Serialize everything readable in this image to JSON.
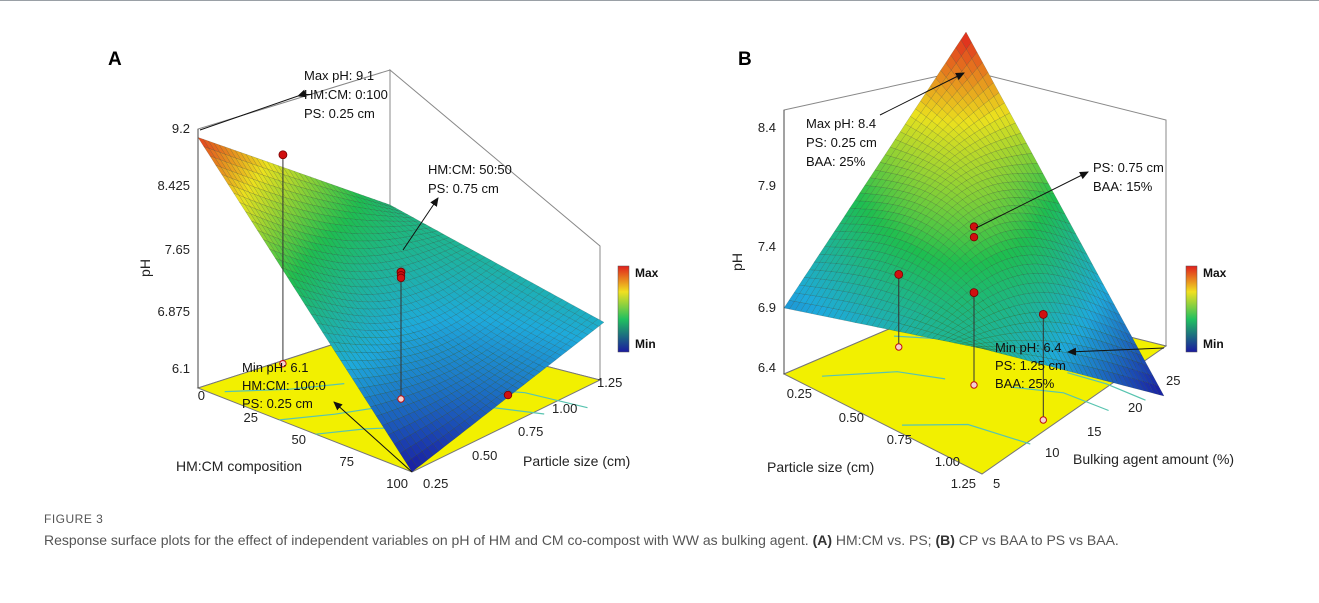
{
  "figure_label": "FIGURE 3",
  "caption": {
    "text_1": "Response surface plots for the effect of independent variables on pH of HM and CM co-compost with WW as bulking agent. ",
    "tag_a": "(A)",
    "text_2": " HM:CM vs. PS; ",
    "tag_b": "(B)",
    "text_3": " CP vs BAA to PS vs BAA."
  },
  "colors": {
    "surface_low": "#1a1aa0",
    "surface_high": "#e0201e",
    "floor": "#f2f000",
    "contour": "#58c4b0",
    "marker": "#d01010"
  },
  "chart_data": [
    {
      "type": "surface3d",
      "panel_label": "A",
      "title": "",
      "z_label": "pH",
      "x_label": "HM:CM composition",
      "y_label": "Particle size (cm)",
      "z_ticks": [
        "9.2",
        "8.425",
        "7.65",
        "6.875",
        "6.1"
      ],
      "z_range": [
        6.1,
        9.2
      ],
      "x_ticks": [
        "0",
        "25",
        "50",
        "75",
        "100"
      ],
      "x_range": [
        0,
        100
      ],
      "y_ticks": [
        "0.25",
        "0.50",
        "0.75",
        "1.00",
        "1.25"
      ],
      "y_range": [
        0.25,
        1.25
      ],
      "surface_corners": {
        "x0_ymin": 9.1,
        "x0_ymax": 7.55,
        "x100_ymin": 6.1,
        "x100_ymax": 7.15
      },
      "colorbar": {
        "max_label": "Max",
        "min_label": "Min"
      },
      "annotations": [
        {
          "lines": [
            "Max pH: 9.1",
            "HM:CM: 0:100",
            "PS: 0.25 cm"
          ]
        },
        {
          "lines": [
            "HM:CM: 50:50",
            "PS: 0.75 cm"
          ]
        },
        {
          "lines": [
            "Min pH: 6.1",
            "HM:CM: 100:0",
            "PS: 0.25 cm"
          ]
        }
      ],
      "design_points": [
        {
          "x": 0,
          "y": 0.75,
          "z": 8.6
        },
        {
          "x": 50,
          "y": 0.75,
          "z": 7.62
        },
        {
          "x": 50,
          "y": 0.75,
          "z": 7.58
        },
        {
          "x": 50,
          "y": 0.75,
          "z": 7.55
        },
        {
          "x": 100,
          "y": 0.75,
          "z": 6.65
        }
      ]
    },
    {
      "type": "surface3d",
      "panel_label": "B",
      "title": "",
      "z_label": "pH",
      "x_label": "Particle size (cm)",
      "y_label": "Bulking agent amount (%)",
      "z_ticks": [
        "8.4",
        "7.9",
        "7.4",
        "6.9",
        "6.4"
      ],
      "z_range": [
        6.4,
        8.4
      ],
      "x_ticks": [
        "0.25",
        "0.50",
        "0.75",
        "1.00",
        "1.25"
      ],
      "x_range": [
        0.25,
        1.25
      ],
      "y_ticks": [
        "5",
        "10",
        "15",
        "20",
        "25"
      ],
      "y_range": [
        5,
        25
      ],
      "surface_corners": {
        "xmin_ymin": 6.9,
        "xmin_ymax": 8.4,
        "xmax_ymin": 7.35,
        "xmax_ymax": 6.4
      },
      "colorbar": {
        "max_label": "Max",
        "min_label": "Min"
      },
      "annotations": [
        {
          "lines": [
            "Max pH: 8.4",
            "PS: 0.25 cm",
            "BAA: 25%"
          ]
        },
        {
          "lines": [
            "PS: 0.75 cm",
            "BAA: 15%"
          ]
        },
        {
          "lines": [
            "Min pH: 6.4",
            "PS: 1.25 cm",
            "BAA: 25%"
          ]
        }
      ],
      "design_points": [
        {
          "x": 0.75,
          "y": 15,
          "z": 7.6
        },
        {
          "x": 0.75,
          "y": 15,
          "z": 7.52
        }
      ]
    }
  ]
}
